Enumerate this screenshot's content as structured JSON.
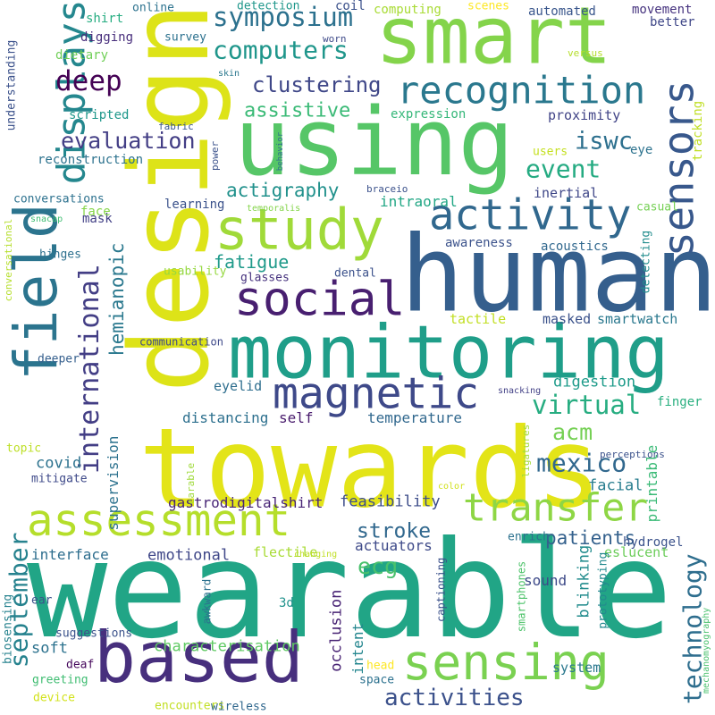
{
  "words": [
    {
      "text": "wearable",
      "color": "#21a586"
    },
    {
      "text": "towards",
      "color": "#e3e418"
    },
    {
      "text": "design",
      "color": "#dde318"
    },
    {
      "text": "human",
      "color": "#355f8d"
    },
    {
      "text": "smart",
      "color": "#84d44b"
    },
    {
      "text": "using",
      "color": "#56c667"
    },
    {
      "text": "monitoring",
      "color": "#1f9e89"
    },
    {
      "text": "based",
      "color": "#472f7d"
    },
    {
      "text": "field",
      "color": "#2b748e"
    },
    {
      "text": "sensing",
      "color": "#7ad151"
    },
    {
      "text": "study",
      "color": "#a0da39"
    },
    {
      "text": "assessment",
      "color": "#b5de2b"
    },
    {
      "text": "social",
      "color": "#481f70"
    },
    {
      "text": "magnetic",
      "color": "#3e4989"
    },
    {
      "text": "activity",
      "color": "#31688e"
    },
    {
      "text": "transfer",
      "color": "#8ed645"
    },
    {
      "text": "recognition",
      "color": "#2a788e"
    },
    {
      "text": "sensors",
      "color": "#38588c"
    },
    {
      "text": "displays",
      "color": "#24878e"
    },
    {
      "text": "international",
      "color": "#433e85"
    },
    {
      "text": "symposium",
      "color": "#2c718e"
    },
    {
      "text": "computers",
      "color": "#1f968b"
    },
    {
      "text": "september",
      "color": "#26828e"
    },
    {
      "text": "technology",
      "color": "#2e6e8e"
    },
    {
      "text": "virtual",
      "color": "#27ad81"
    },
    {
      "text": "mexico",
      "color": "#31688e"
    },
    {
      "text": "activities",
      "color": "#3b518b"
    },
    {
      "text": "deep",
      "color": "#440154"
    },
    {
      "text": "clustering",
      "color": "#3f4788"
    },
    {
      "text": "event",
      "color": "#25ab82"
    },
    {
      "text": "iswc",
      "color": "#2d708e"
    },
    {
      "text": "evaluation",
      "color": "#433e85"
    },
    {
      "text": "assistive",
      "color": "#3aba76"
    },
    {
      "text": "actigraphy",
      "color": "#21918c"
    },
    {
      "text": "fatigue",
      "color": "#1f9a8a"
    },
    {
      "text": "patients",
      "color": "#34618d"
    },
    {
      "text": "hemianopic",
      "color": "#2a788e"
    },
    {
      "text": "ecg",
      "color": "#4ac16d"
    },
    {
      "text": "stroke",
      "color": "#31688e"
    },
    {
      "text": "acm",
      "color": "#75d054"
    },
    {
      "text": "facial",
      "color": "#287d8e"
    },
    {
      "text": "blinking",
      "color": "#228c8d"
    },
    {
      "text": "occlusion",
      "color": "#482374"
    },
    {
      "text": "digestion",
      "color": "#1e9b8a"
    },
    {
      "text": "covid",
      "color": "#2c728e"
    },
    {
      "text": "feasibility",
      "color": "#3d4d8a"
    },
    {
      "text": "characterisation",
      "color": "#5ec962"
    },
    {
      "text": "printable",
      "color": "#3aba76"
    },
    {
      "text": "supervision",
      "color": "#2c728e"
    },
    {
      "text": "soft",
      "color": "#2c728e"
    },
    {
      "text": "emotional",
      "color": "#3f4788"
    },
    {
      "text": "actuators",
      "color": "#3e4a89"
    },
    {
      "text": "gastrodigitalshirt",
      "color": "#482576"
    },
    {
      "text": "interface",
      "color": "#2e6e8e"
    },
    {
      "text": "intent",
      "color": "#24868e"
    },
    {
      "text": "system",
      "color": "#2a788e"
    },
    {
      "text": "hydrogel",
      "color": "#3b528b"
    },
    {
      "text": "temperature",
      "color": "#31688e"
    },
    {
      "text": "distancing",
      "color": "#2d708e"
    },
    {
      "text": "self",
      "color": "#481a6c"
    },
    {
      "text": "eyelid",
      "color": "#2e6e8e"
    },
    {
      "text": "proximity",
      "color": "#414487"
    },
    {
      "text": "expression",
      "color": "#35b779"
    },
    {
      "text": "tracking",
      "color": "#c0df25"
    },
    {
      "text": "inertial",
      "color": "#3f4788"
    },
    {
      "text": "masked",
      "color": "#3b528b"
    },
    {
      "text": "smartwatch",
      "color": "#2a788e"
    },
    {
      "text": "tactile",
      "color": "#c2df23"
    },
    {
      "text": "finger",
      "color": "#29af7f"
    },
    {
      "text": "sound",
      "color": "#3e4a89"
    },
    {
      "text": "eslucent",
      "color": "#6ccd5a"
    },
    {
      "text": "flectile",
      "color": "#a8db34"
    },
    {
      "text": "acoustics",
      "color": "#31688e"
    },
    {
      "text": "awareness",
      "color": "#3b528b"
    },
    {
      "text": "learning",
      "color": "#3b528b"
    },
    {
      "text": "mask",
      "color": "#424086"
    },
    {
      "text": "face",
      "color": "#86d549"
    },
    {
      "text": "eye",
      "color": "#2c728e"
    },
    {
      "text": "reconstruction",
      "color": "#2c728e"
    },
    {
      "text": "scripted",
      "color": "#1f988b"
    },
    {
      "text": "automated",
      "color": "#39568c"
    },
    {
      "text": "movement",
      "color": "#46337f"
    },
    {
      "text": "better",
      "color": "#3f4788"
    },
    {
      "text": "computing",
      "color": "#a8db34"
    },
    {
      "text": "coil",
      "color": "#3b518b"
    },
    {
      "text": "survey",
      "color": "#2c718e"
    },
    {
      "text": "digging",
      "color": "#472d7b"
    },
    {
      "text": "shirt",
      "color": "#26ad81"
    },
    {
      "text": "dietary",
      "color": "#70cf57"
    },
    {
      "text": "understanding",
      "color": "#3b518b"
    },
    {
      "text": "conversations",
      "color": "#2c718e"
    },
    {
      "text": "intraoral",
      "color": "#22a785"
    },
    {
      "text": "casual",
      "color": "#75d054"
    },
    {
      "text": "communication",
      "color": "#3e4989"
    },
    {
      "text": "deeper",
      "color": "#355f8d"
    },
    {
      "text": "hinges",
      "color": "#2d708e"
    },
    {
      "text": "topic",
      "color": "#bddf26"
    },
    {
      "text": "mitigate",
      "color": "#3e4989"
    },
    {
      "text": "dental",
      "color": "#3b518b"
    },
    {
      "text": "glasses",
      "color": "#46327e"
    },
    {
      "text": "usability",
      "color": "#95d840"
    },
    {
      "text": "users",
      "color": "#c5e021"
    },
    {
      "text": "detecting",
      "color": "#228d8d"
    },
    {
      "text": "3d",
      "color": "#20928c"
    },
    {
      "text": "awkward",
      "color": "#2c718e"
    },
    {
      "text": "smartphones",
      "color": "#4ec36b"
    },
    {
      "text": "prototyping",
      "color": "#23898e"
    },
    {
      "text": "captioning",
      "color": "#3b518b"
    },
    {
      "text": "deaf",
      "color": "#46085c"
    },
    {
      "text": "greeting",
      "color": "#40bd72"
    },
    {
      "text": "device",
      "color": "#d2e21b"
    },
    {
      "text": "encounters",
      "color": "#c2df23"
    },
    {
      "text": "wireless",
      "color": "#31688e"
    },
    {
      "text": "space",
      "color": "#2c718e"
    },
    {
      "text": "head",
      "color": "#fde725"
    },
    {
      "text": "biosensing",
      "color": "#26828e"
    },
    {
      "text": "ear",
      "color": "#3b528b"
    },
    {
      "text": "suggestions",
      "color": "#3b528b"
    },
    {
      "text": "enrich",
      "color": "#2c718e"
    },
    {
      "text": "online",
      "color": "#2c728e"
    },
    {
      "text": "detection",
      "color": "#1f978b"
    },
    {
      "text": "worn",
      "color": "#3e4a89"
    },
    {
      "text": "scenes",
      "color": "#fde725"
    },
    {
      "text": "fabric",
      "color": "#39568c"
    },
    {
      "text": "skin",
      "color": "#2a788e"
    },
    {
      "text": "versus",
      "color": "#b5de2b"
    },
    {
      "text": "behavior",
      "color": "#2d708e"
    },
    {
      "text": "power",
      "color": "#3b528b"
    },
    {
      "text": "braceio",
      "color": "#3b518b"
    },
    {
      "text": "temporalis",
      "color": "#84d44b"
    },
    {
      "text": "snacap",
      "color": "#40bd72"
    },
    {
      "text": "conversational",
      "color": "#b5de2b"
    },
    {
      "text": "snacking",
      "color": "#424086"
    },
    {
      "text": "perceptions",
      "color": "#3b518b"
    },
    {
      "text": "earable",
      "color": "#9fda3a"
    },
    {
      "text": "color",
      "color": "#d0e11c"
    },
    {
      "text": "ligatures",
      "color": "#a2da37"
    },
    {
      "text": "changing",
      "color": "#c0df25"
    },
    {
      "text": "mechanomyography",
      "color": "#4ac16d"
    }
  ]
}
